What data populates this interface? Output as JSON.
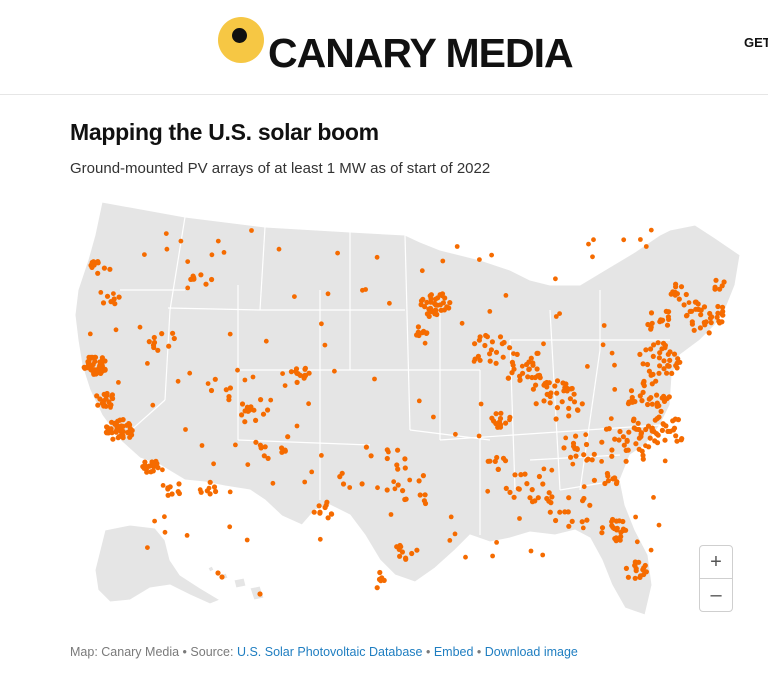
{
  "header": {
    "brand": "CANARY MEDIA",
    "nav_partial": "GET",
    "logo_color": "#f6c744"
  },
  "map": {
    "title": "Mapping the U.S. solar boom",
    "subtitle": "Ground-mounted PV arrays of at least 1 MW as of start of 2022",
    "land_color": "#e5e5e5",
    "border_color": "#ffffff",
    "point_color": "#f56b00",
    "zoom_in": "+",
    "zoom_out": "–"
  },
  "footer": {
    "credit": "Map: Canary Media",
    "sep1": " • Source: ",
    "source_link": "U.S. Solar Photovoltaic Database",
    "sep2": " • ",
    "embed_link": "Embed",
    "sep3": " • ",
    "download_link": "Download image"
  }
}
